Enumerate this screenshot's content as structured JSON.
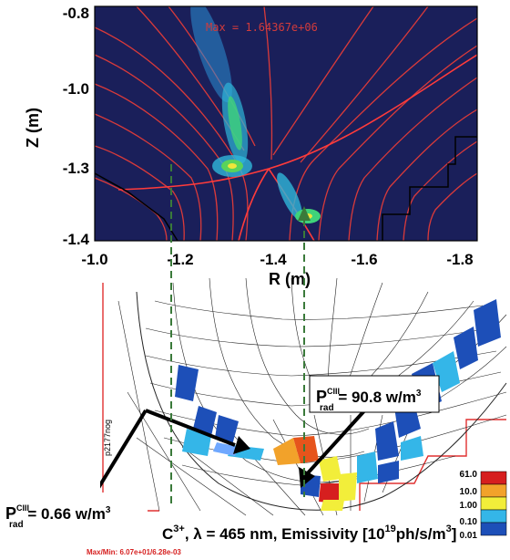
{
  "top_plot": {
    "max_label": "Max = 1.64367e+06",
    "y_axis_label": "Z (m)",
    "x_axis_label": "R (m)",
    "y_ticks": [
      "-0.8",
      "-1.0",
      "-1.3",
      "-1.4"
    ],
    "x_ticks": [
      "-1.0",
      "-1.2",
      "-1.4",
      "-1.6",
      "-1.8"
    ]
  },
  "bottom_plot": {
    "upper_annotation": {
      "base": "P",
      "sup": "CIII",
      "sub": "rad",
      "value": " = 90.8 w/m",
      "exp": "3"
    },
    "lower_annotation": {
      "base": "P",
      "sup": "CIII",
      "sub": "rad",
      "value": " = 0.66 w/m",
      "exp": "3"
    },
    "shot_id": "p2177nog",
    "caption_main": "C",
    "caption_sup": "3+",
    "caption_rest": ", λ = 465 nm, Emissivity [10",
    "caption_exp": "19",
    "caption_unit": "ph/s/m",
    "caption_unit_exp": "3",
    "caption_end": "]",
    "maxmin": "Max/Min: 6.07e+01/6.28e-03",
    "scale_labels": [
      "61.0",
      "10.0",
      "1.00",
      "0.10",
      "0.01"
    ],
    "scale_colors": [
      "#d61f1f",
      "#f2a22a",
      "#f2ee3a",
      "#34b6e8",
      "#1d4fb8"
    ]
  }
}
